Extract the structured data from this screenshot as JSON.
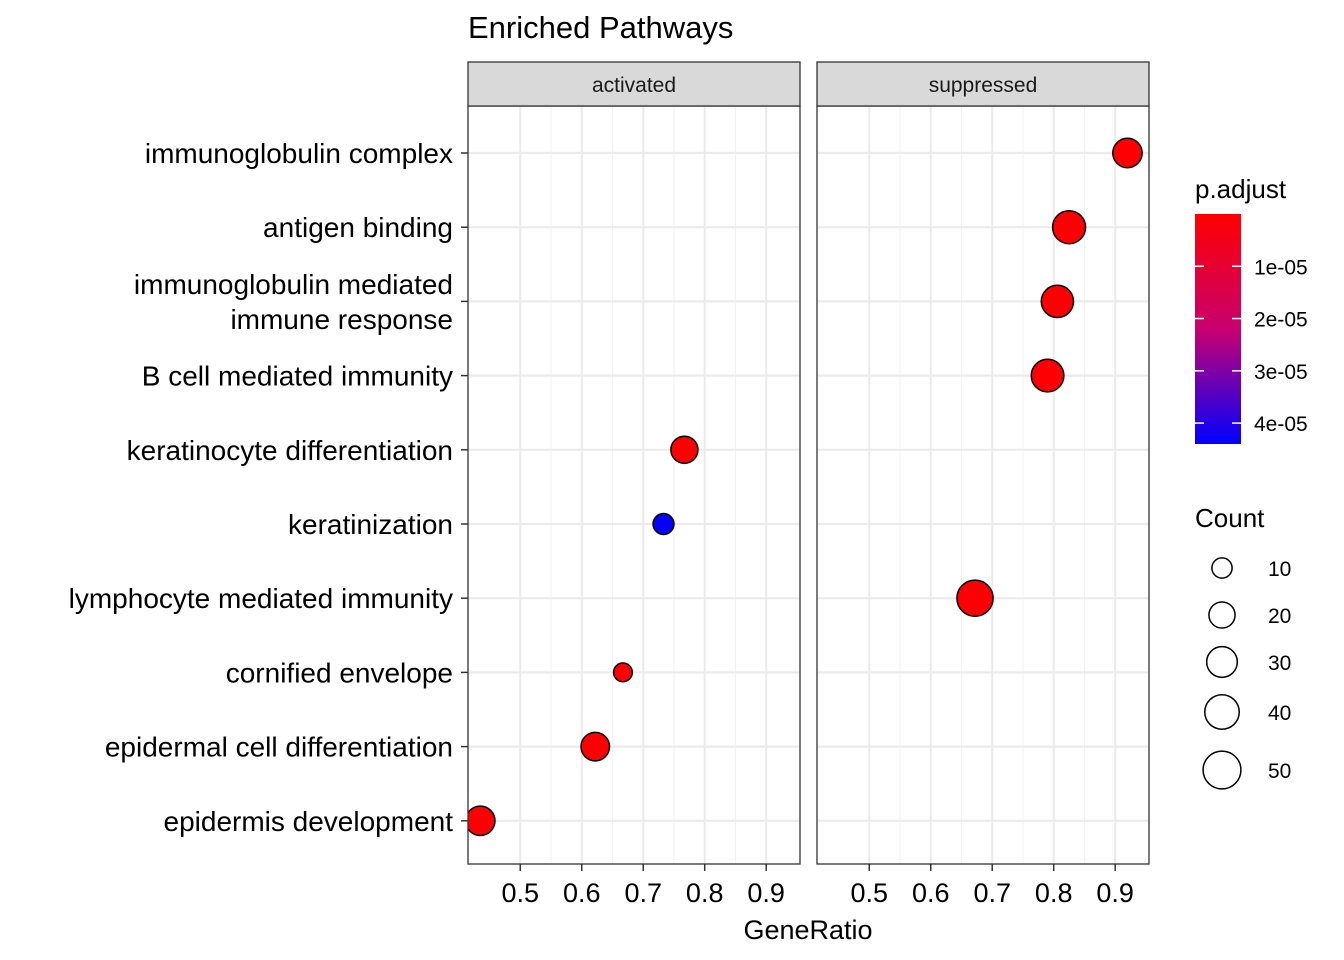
{
  "chart_data": {
    "type": "scatter",
    "title": "Enriched Pathways",
    "xlabel": "GeneRatio",
    "ylabel": "",
    "xlim": [
      0.415,
      0.955
    ],
    "x_ticks": [
      0.5,
      0.6,
      0.7,
      0.8,
      0.9
    ],
    "x_tick_labels": [
      "0.5",
      "0.6",
      "0.7",
      "0.8",
      "0.9"
    ],
    "grid": true,
    "categories": [
      "immunoglobulin complex",
      "antigen binding",
      "immunoglobulin mediated\nimmune response",
      "B cell mediated immunity",
      "keratinocyte differentiation",
      "keratinization",
      "lymphocyte mediated immunity",
      "cornified envelope",
      "epidermal cell differentiation",
      "epidermis development"
    ],
    "facets": [
      {
        "name": "activated",
        "points": [
          {
            "category": "keratinocyte differentiation",
            "x": 0.767,
            "count": 22,
            "p_adjust": 5e-07
          },
          {
            "category": "keratinization",
            "x": 0.733,
            "count": 11,
            "p_adjust": 4.3e-05
          },
          {
            "category": "cornified envelope",
            "x": 0.667,
            "count": 8,
            "p_adjust": 5e-07
          },
          {
            "category": "epidermal cell differentiation",
            "x": 0.622,
            "count": 25,
            "p_adjust": 5e-07
          },
          {
            "category": "epidermis development",
            "x": 0.435,
            "count": 27,
            "p_adjust": 5e-07
          }
        ]
      },
      {
        "name": "suppressed",
        "points": [
          {
            "category": "immunoglobulin complex",
            "x": 0.92,
            "count": 27,
            "p_adjust": 5e-07
          },
          {
            "category": "antigen binding",
            "x": 0.825,
            "count": 36,
            "p_adjust": 5e-07
          },
          {
            "category": "immunoglobulin mediated\nimmune response",
            "x": 0.806,
            "count": 34,
            "p_adjust": 5e-07
          },
          {
            "category": "B cell mediated immunity",
            "x": 0.79,
            "count": 35,
            "p_adjust": 5e-07
          },
          {
            "category": "lymphocyte mediated immunity",
            "x": 0.672,
            "count": 45,
            "p_adjust": 5e-07
          }
        ]
      }
    ],
    "color_legend": {
      "title": "p.adjust",
      "range": [
        0,
        4.4e-05
      ],
      "ticks": [
        1e-05,
        2e-05,
        3e-05,
        4e-05
      ],
      "tick_labels": [
        "1e-05",
        "2e-05",
        "3e-05",
        "4e-05"
      ],
      "low_color": "#FF0000",
      "high_color": "#0000FF"
    },
    "size_legend": {
      "title": "Count",
      "values": [
        10,
        20,
        30,
        40,
        50
      ],
      "labels": [
        "10",
        "20",
        "30",
        "40",
        "50"
      ]
    },
    "legend_position": "right"
  }
}
